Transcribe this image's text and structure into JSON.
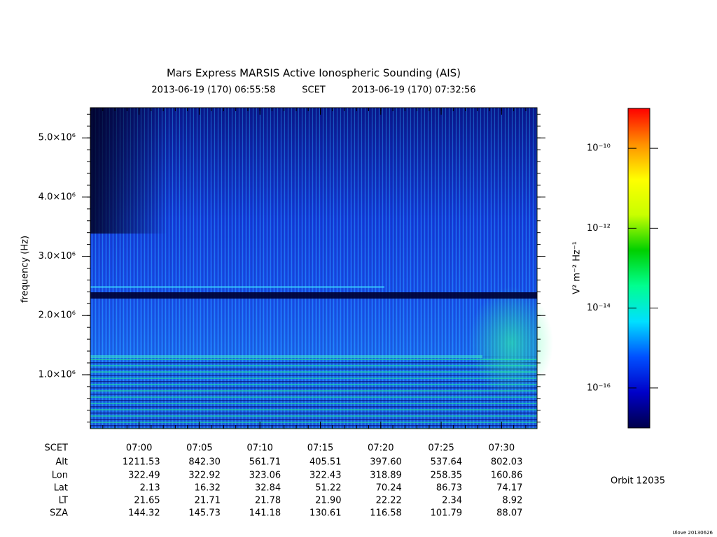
{
  "chart_data": {
    "type": "spectrogram",
    "title": "Mars Express MARSIS Active Ionospheric Sounding (AIS)",
    "x_label": "SCET",
    "xlim": [
      "2013-06-19 (170) 06:55:58",
      "2013-06-19 (170) 07:32:56"
    ],
    "xticks": [
      "07:00",
      "07:05",
      "07:10",
      "07:15",
      "07:20",
      "07:25",
      "07:30"
    ],
    "y_label": "frequency (Hz)",
    "ylim": [
      90000,
      5510000
    ],
    "yticks": [
      {
        "value": 1000000,
        "label": "1.0×10⁶"
      },
      {
        "value": 2000000,
        "label": "2.0×10⁶"
      },
      {
        "value": 3000000,
        "label": "3.0×10⁶"
      },
      {
        "value": 4000000,
        "label": "4.0×10⁶"
      },
      {
        "value": 5000000,
        "label": "5.0×10⁶"
      }
    ],
    "colorbar": {
      "label": "V² m⁻² Hz⁻¹",
      "log_scale": true,
      "zlim": [
        1e-17,
        1e-09
      ],
      "zticks": [
        {
          "value": 1e-16,
          "label": "10⁻¹⁶"
        },
        {
          "value": 1e-14,
          "label": "10⁻¹⁴"
        },
        {
          "value": 1e-12,
          "label": "10⁻¹²"
        },
        {
          "value": 1e-10,
          "label": "10⁻¹⁰"
        }
      ],
      "colors": [
        "#00004a",
        "#0000c8",
        "#0050ff",
        "#00e0ff",
        "#00ff90",
        "#00d000",
        "#c8ff00",
        "#ffff00",
        "#ff9000",
        "#ff0000"
      ]
    },
    "ephemeris": {
      "time_label": "SCET",
      "rows": [
        {
          "name": "Alt",
          "values": [
            "1211.53",
            "842.30",
            "561.71",
            "405.51",
            "397.60",
            "537.64",
            "802.03"
          ]
        },
        {
          "name": "Lon",
          "values": [
            "322.49",
            "322.92",
            "323.06",
            "322.43",
            "318.89",
            "258.35",
            "160.86"
          ]
        },
        {
          "name": "Lat",
          "values": [
            "2.13",
            "16.32",
            "32.84",
            "51.22",
            "70.24",
            "86.73",
            "74.17"
          ]
        },
        {
          "name": "LT",
          "values": [
            "21.65",
            "21.71",
            "21.78",
            "21.90",
            "22.22",
            "2.34",
            "8.92"
          ]
        },
        {
          "name": "SZA",
          "values": [
            "144.32",
            "145.73",
            "141.18",
            "130.61",
            "116.58",
            "101.79",
            "88.07"
          ]
        }
      ]
    },
    "orbit": "Orbit 12035",
    "credit": "Ulove 20130626"
  }
}
